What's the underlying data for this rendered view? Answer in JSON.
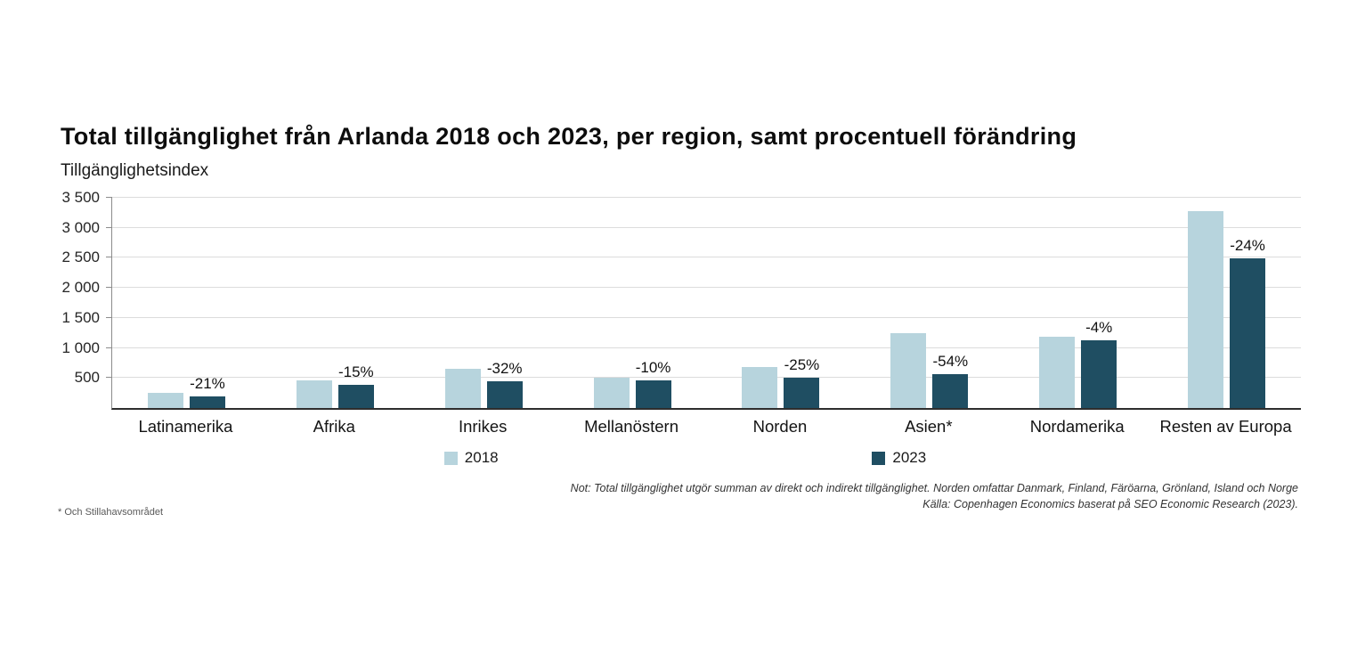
{
  "title": "Total tillgänglighet från Arlanda 2018 och 2023, per region, samt procentuell förändring",
  "subtitle": "Tillgänglighetsindex",
  "chart_data": {
    "type": "bar",
    "categories": [
      "Latinamerika",
      "Afrika",
      "Inrikes",
      "Mellanöstern",
      "Norden",
      "Asien*",
      "Nordamerika",
      "Resten av Europa"
    ],
    "series": [
      {
        "name": "2018",
        "color": "#b7d4dd",
        "values": [
          250,
          460,
          660,
          510,
          680,
          1240,
          1180,
          3280
        ]
      },
      {
        "name": "2023",
        "color": "#1f4e62",
        "values": [
          198,
          390,
          450,
          460,
          510,
          570,
          1130,
          2490
        ]
      }
    ],
    "change_labels": [
      "-21%",
      "-15%",
      "-32%",
      "-10%",
      "-25%",
      "-54%",
      "-4%",
      "-24%"
    ],
    "title": "Total tillgänglighet från Arlanda 2018 och 2023, per region, samt procentuell förändring",
    "ylabel": "Tillgänglighetsindex",
    "xlabel": "",
    "ylim": [
      0,
      3500
    ],
    "yticks": [
      3500,
      3000,
      2500,
      2000,
      1500,
      1000,
      500
    ],
    "ytick_labels": [
      "3 500",
      "3 000",
      "2 500",
      "2 000",
      "1 500",
      "1 000",
      "500"
    ],
    "grid": true,
    "legend_position": "bottom"
  },
  "legend": {
    "item1": "2018",
    "item2": "2023"
  },
  "footnotes": {
    "note_line1": "Not: Total tillgänglighet utgör summan av direkt och indirekt tillgänglighet. Norden omfattar Danmark, Finland, Färöarna, Grönland, Island och Norge",
    "note_line2": "Källa: Copenhagen Economics baserat på SEO Economic Research (2023).",
    "asterisk_note": "* Och Stillahavsområdet"
  }
}
